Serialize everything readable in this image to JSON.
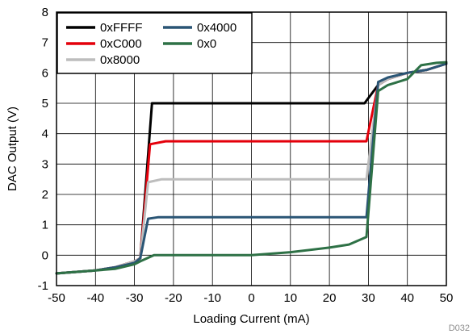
{
  "chart_data": {
    "type": "line",
    "title": "",
    "xlabel": "Loading Current (mA)",
    "ylabel": "DAC Output (V)",
    "xlim": [
      -50,
      50
    ],
    "ylim": [
      -1,
      8
    ],
    "xticks": [
      -50,
      -40,
      -30,
      -20,
      -10,
      0,
      10,
      20,
      30,
      40,
      50
    ],
    "yticks": [
      -1,
      0,
      1,
      2,
      3,
      4,
      5,
      6,
      7,
      8
    ],
    "grid": true,
    "legend_position": "top-left",
    "figure_id": "D032",
    "series": [
      {
        "name": "0xFFFF",
        "color": "#000000",
        "x": [
          -50,
          -40,
          -35,
          -30,
          -28.5,
          -25.5,
          -20,
          0,
          20,
          29,
          32.5,
          35,
          40,
          45,
          50
        ],
        "y": [
          -0.6,
          -0.5,
          -0.4,
          -0.2,
          -0.1,
          5.0,
          5.0,
          5.0,
          5.0,
          5.0,
          5.6,
          5.8,
          6.0,
          6.1,
          6.3
        ]
      },
      {
        "name": "0xC000",
        "color": "#e4000b",
        "x": [
          -50,
          -40,
          -35,
          -30,
          -28.5,
          -26,
          -22,
          0,
          20,
          29.5,
          32.5,
          35,
          40,
          45,
          50
        ],
        "y": [
          -0.6,
          -0.5,
          -0.4,
          -0.2,
          -0.1,
          3.65,
          3.75,
          3.75,
          3.75,
          3.75,
          5.6,
          5.8,
          6.0,
          6.1,
          6.3
        ]
      },
      {
        "name": "0x8000",
        "color": "#bdbdbd",
        "x": [
          -50,
          -40,
          -35,
          -30,
          -28.5,
          -26.5,
          -23,
          0,
          20,
          29.5,
          32.5,
          35,
          40,
          45,
          50
        ],
        "y": [
          -0.6,
          -0.5,
          -0.4,
          -0.2,
          -0.1,
          2.4,
          2.5,
          2.5,
          2.5,
          2.5,
          5.6,
          5.8,
          6.0,
          6.1,
          6.3
        ]
      },
      {
        "name": "0x4000",
        "color": "#2a5575",
        "x": [
          -50,
          -40,
          -35,
          -30,
          -28.5,
          -26.5,
          -24,
          0,
          20,
          29.5,
          32.5,
          35,
          40,
          45,
          50
        ],
        "y": [
          -0.6,
          -0.5,
          -0.4,
          -0.25,
          -0.1,
          1.2,
          1.25,
          1.25,
          1.25,
          1.25,
          5.7,
          5.85,
          6.0,
          6.1,
          6.3
        ]
      },
      {
        "name": "0x0",
        "color": "#2e7146",
        "x": [
          -50,
          -40,
          -35,
          -30,
          -28.5,
          -25,
          -20,
          0,
          10,
          20,
          25,
          29.5,
          32.5,
          35,
          40,
          43.5,
          47.5,
          50
        ],
        "y": [
          -0.6,
          -0.5,
          -0.45,
          -0.3,
          -0.2,
          0.0,
          0.0,
          0.0,
          0.1,
          0.25,
          0.35,
          0.6,
          5.4,
          5.6,
          5.8,
          6.25,
          6.33,
          6.35
        ]
      }
    ]
  }
}
